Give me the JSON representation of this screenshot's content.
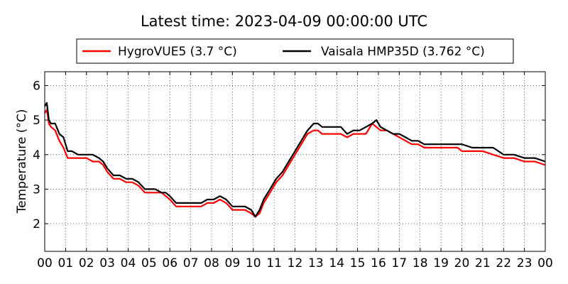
{
  "chart_data": {
    "type": "line",
    "title": "Latest time: 2023-04-09 00:00:00 UTC",
    "xlabel": "",
    "ylabel": "Temperature (°C)",
    "xlim": [
      0,
      24
    ],
    "ylim": [
      1.2,
      6.4
    ],
    "x_ticks": [
      0,
      1,
      2,
      3,
      4,
      5,
      6,
      7,
      8,
      9,
      10,
      11,
      12,
      13,
      14,
      15,
      16,
      17,
      18,
      19,
      20,
      21,
      22,
      23,
      24
    ],
    "x_tick_labels": [
      "00",
      "01",
      "02",
      "03",
      "04",
      "05",
      "06",
      "07",
      "08",
      "09",
      "10",
      "11",
      "12",
      "13",
      "14",
      "15",
      "16",
      "17",
      "18",
      "19",
      "20",
      "21",
      "22",
      "23",
      "00"
    ],
    "y_ticks": [
      2,
      3,
      4,
      5,
      6
    ],
    "y_tick_labels": [
      "2",
      "3",
      "4",
      "5",
      "6"
    ],
    "grid": true,
    "legend_position": "top",
    "series": [
      {
        "name": "HygroVUE5 (3.7 °C)",
        "color": "#ff0000",
        "x": [
          0,
          0.1,
          0.2,
          0.3,
          0.5,
          0.7,
          0.9,
          1.1,
          1.3,
          1.6,
          2.0,
          2.3,
          2.6,
          2.8,
          3.0,
          3.3,
          3.6,
          3.9,
          4.2,
          4.5,
          4.8,
          5.0,
          5.3,
          5.6,
          5.8,
          6.0,
          6.3,
          6.6,
          6.9,
          7.2,
          7.5,
          7.8,
          8.1,
          8.4,
          8.7,
          9.0,
          9.3,
          9.6,
          9.9,
          10.1,
          10.3,
          10.5,
          10.8,
          11.1,
          11.4,
          11.7,
          12.0,
          12.3,
          12.6,
          12.9,
          13.1,
          13.3,
          13.6,
          13.9,
          14.2,
          14.5,
          14.8,
          15.1,
          15.4,
          15.7,
          15.9,
          16.1,
          16.4,
          16.7,
          17.0,
          17.3,
          17.6,
          17.9,
          18.2,
          18.6,
          19.0,
          19.4,
          19.8,
          20.0,
          20.5,
          21.0,
          21.5,
          22.0,
          22.5,
          23.0,
          23.5,
          24.0
        ],
        "y": [
          5.2,
          5.3,
          4.9,
          4.8,
          4.7,
          4.4,
          4.2,
          3.9,
          3.9,
          3.9,
          3.9,
          3.8,
          3.8,
          3.7,
          3.5,
          3.3,
          3.3,
          3.2,
          3.2,
          3.1,
          2.9,
          2.9,
          2.9,
          2.9,
          2.8,
          2.7,
          2.5,
          2.5,
          2.5,
          2.5,
          2.5,
          2.6,
          2.6,
          2.7,
          2.6,
          2.4,
          2.4,
          2.4,
          2.3,
          2.2,
          2.3,
          2.6,
          2.9,
          3.2,
          3.4,
          3.7,
          4.0,
          4.3,
          4.6,
          4.7,
          4.7,
          4.6,
          4.6,
          4.6,
          4.6,
          4.5,
          4.6,
          4.6,
          4.6,
          4.9,
          4.8,
          4.7,
          4.7,
          4.6,
          4.5,
          4.4,
          4.3,
          4.3,
          4.2,
          4.2,
          4.2,
          4.2,
          4.2,
          4.1,
          4.1,
          4.1,
          4.0,
          3.9,
          3.9,
          3.8,
          3.8,
          3.7
        ]
      },
      {
        "name": "Vaisala HMP35D (3.762 °C)",
        "color": "#000000",
        "x": [
          0,
          0.1,
          0.2,
          0.3,
          0.5,
          0.7,
          0.9,
          1.1,
          1.3,
          1.6,
          2.0,
          2.3,
          2.6,
          2.8,
          3.0,
          3.3,
          3.6,
          3.9,
          4.2,
          4.5,
          4.8,
          5.0,
          5.3,
          5.6,
          5.8,
          6.0,
          6.3,
          6.6,
          6.9,
          7.2,
          7.5,
          7.8,
          8.1,
          8.4,
          8.7,
          9.0,
          9.3,
          9.6,
          9.9,
          10.1,
          10.3,
          10.5,
          10.8,
          11.1,
          11.4,
          11.7,
          12.0,
          12.3,
          12.6,
          12.9,
          13.1,
          13.3,
          13.6,
          13.9,
          14.2,
          14.5,
          14.8,
          15.1,
          15.4,
          15.7,
          15.9,
          16.1,
          16.4,
          16.7,
          17.0,
          17.3,
          17.6,
          17.9,
          18.2,
          18.6,
          19.0,
          19.4,
          19.8,
          20.0,
          20.5,
          21.0,
          21.5,
          22.0,
          22.5,
          23.0,
          23.5,
          24.0
        ],
        "y": [
          5.4,
          5.5,
          5.0,
          4.9,
          4.9,
          4.6,
          4.5,
          4.1,
          4.1,
          4.0,
          4.0,
          4.0,
          3.9,
          3.8,
          3.6,
          3.4,
          3.4,
          3.3,
          3.3,
          3.2,
          3.0,
          3.0,
          3.0,
          2.9,
          2.9,
          2.8,
          2.6,
          2.6,
          2.6,
          2.6,
          2.6,
          2.7,
          2.7,
          2.8,
          2.7,
          2.5,
          2.5,
          2.5,
          2.4,
          2.2,
          2.4,
          2.7,
          3.0,
          3.3,
          3.5,
          3.8,
          4.1,
          4.4,
          4.7,
          4.9,
          4.9,
          4.8,
          4.8,
          4.8,
          4.8,
          4.6,
          4.7,
          4.7,
          4.8,
          4.9,
          5.0,
          4.8,
          4.7,
          4.6,
          4.6,
          4.5,
          4.4,
          4.4,
          4.3,
          4.3,
          4.3,
          4.3,
          4.3,
          4.3,
          4.2,
          4.2,
          4.2,
          4.0,
          4.0,
          3.9,
          3.9,
          3.8
        ]
      }
    ]
  }
}
